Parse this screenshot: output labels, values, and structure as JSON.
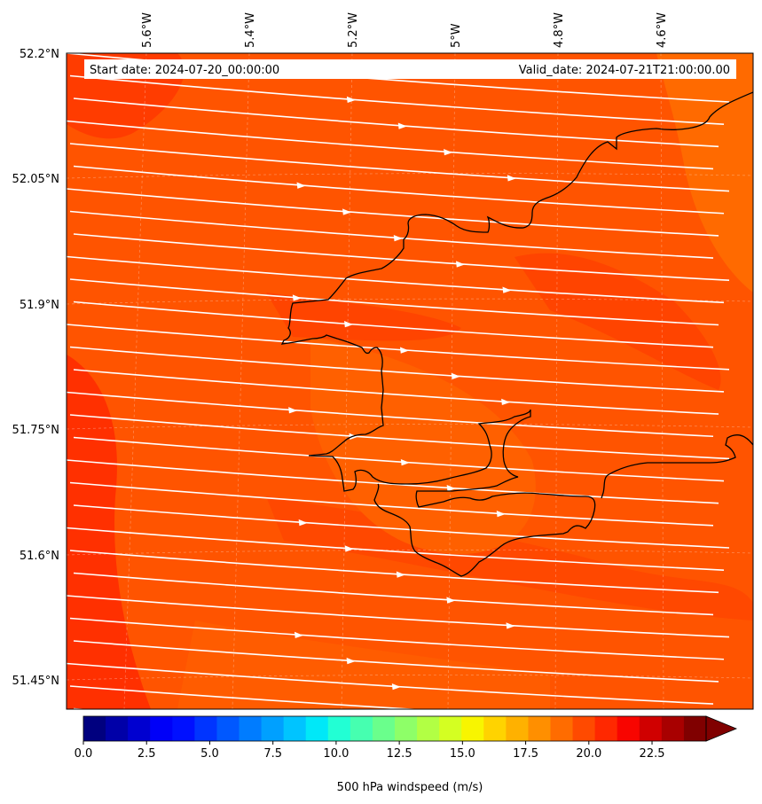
{
  "map": {
    "start_date": "Start date: 2024-07-20_00:00:00",
    "valid_date": "Valid_date: 2024-07-21T21:00:00.00",
    "lon_labels": [
      "5.6°W",
      "5.4°W",
      "5.2°W",
      "5°W",
      "4.8°W",
      "4.6°W"
    ],
    "lat_labels": [
      "52.2°N",
      "52.05°N",
      "51.9°N",
      "51.75°N",
      "51.6°N",
      "51.45°N"
    ],
    "background_color": "#ff5a00",
    "streamline_color": "#ffffff",
    "coastline_color": "#000000"
  },
  "colorbar": {
    "label": "500 hPa windspeed (m/s)",
    "ticks": [
      "0.0",
      "2.5",
      "5.0",
      "7.5",
      "10.0",
      "12.5",
      "15.0",
      "17.5",
      "20.0",
      "22.5"
    ],
    "colors": [
      "#00007f",
      "#0000a8",
      "#0000d0",
      "#0000f8",
      "#0010ff",
      "#0034ff",
      "#0058ff",
      "#007cff",
      "#00a0ff",
      "#00c4ff",
      "#00e8f8",
      "#22ffd4",
      "#46ffb0",
      "#6aff8c",
      "#8eff68",
      "#b2ff44",
      "#d4ff22",
      "#f8f500",
      "#ffd300",
      "#ffb100",
      "#ff8f00",
      "#ff6c00",
      "#ff4a00",
      "#ff2800",
      "#f80500",
      "#d00000",
      "#a80000",
      "#800000"
    ]
  }
}
